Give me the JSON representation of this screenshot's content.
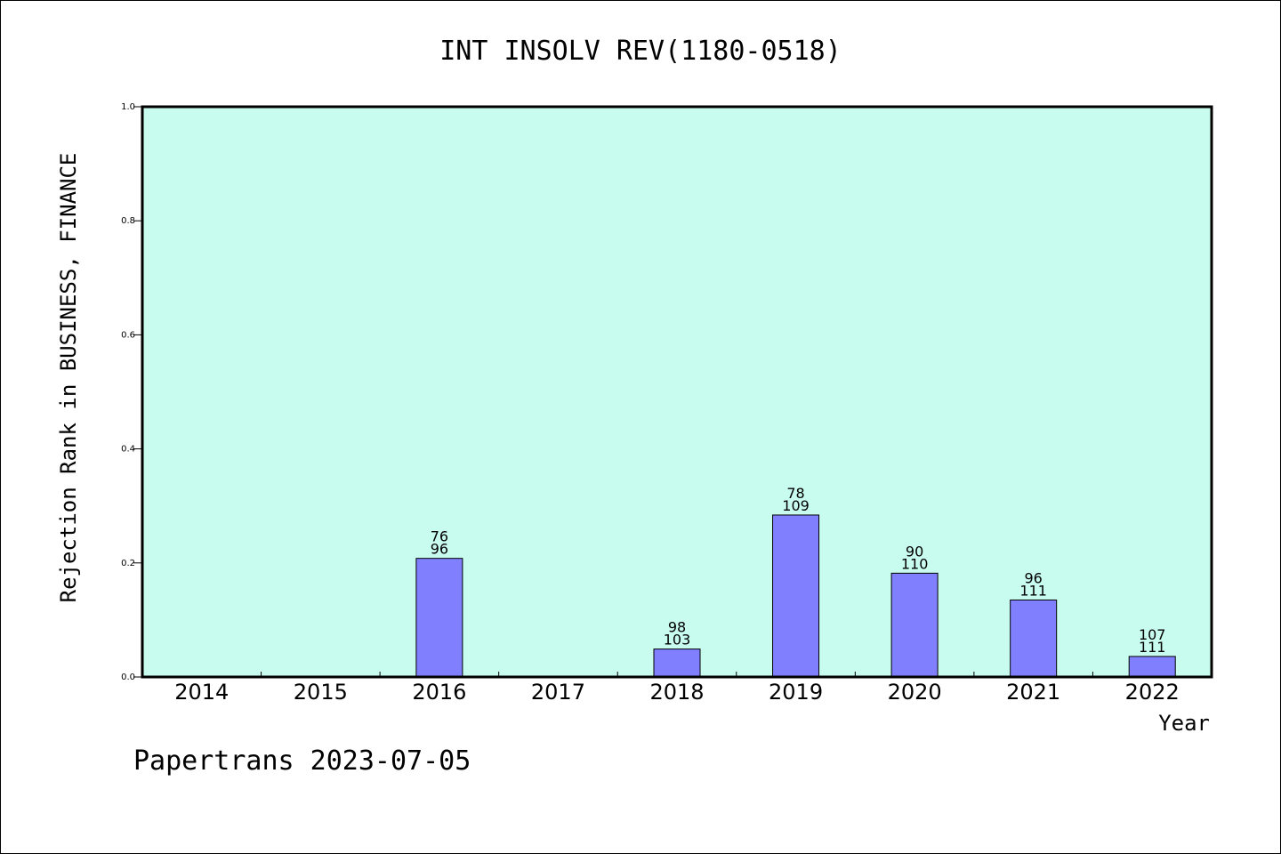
{
  "chart_data": {
    "type": "bar",
    "title": "INT INSOLV REV(1180-0518)",
    "xlabel": "Year",
    "ylabel": "Rejection Rank in BUSINESS, FINANCE",
    "categories": [
      "2014",
      "2015",
      "2016",
      "2017",
      "2018",
      "2019",
      "2020",
      "2021",
      "2022"
    ],
    "values": [
      0,
      0,
      0.208,
      0,
      0.049,
      0.284,
      0.182,
      0.135,
      0.036
    ],
    "labels_top": [
      "",
      "",
      "76",
      "",
      "98",
      "78",
      "90",
      "96",
      "107"
    ],
    "labels_bottom": [
      "",
      "",
      "96",
      "",
      "103",
      "109",
      "110",
      "111",
      "111"
    ],
    "yticks": [
      "0.0",
      "0.2",
      "0.4",
      "0.6",
      "0.8",
      "1.0"
    ],
    "ylim": [
      0,
      1.0
    ],
    "grid": false,
    "plot_background": "#c8fcee",
    "bar_color": "#8080ff"
  },
  "footer": {
    "text": "Papertrans 2023-07-05"
  }
}
